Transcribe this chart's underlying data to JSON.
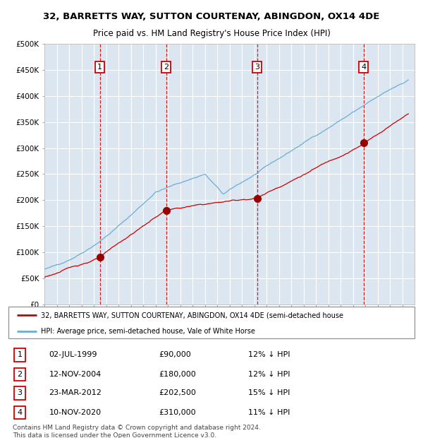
{
  "title": "32, BARRETTS WAY, SUTTON COURTENAY, ABINGDON, OX14 4DE",
  "subtitle": "Price paid vs. HM Land Registry's House Price Index (HPI)",
  "plot_bg_color": "#dce6f0",
  "hpi_color": "#6aaed6",
  "price_color": "#cc0000",
  "marker_color": "#990000",
  "vline_color": "#cc0000",
  "yticks": [
    0,
    50000,
    100000,
    150000,
    200000,
    250000,
    300000,
    350000,
    400000,
    450000,
    500000
  ],
  "ytick_labels": [
    "£0",
    "£50K",
    "£100K",
    "£150K",
    "£200K",
    "£250K",
    "£300K",
    "£350K",
    "£400K",
    "£450K",
    "£500K"
  ],
  "xmin": 1995.0,
  "xmax": 2025.0,
  "ymin": 0,
  "ymax": 500000,
  "sale_dates": [
    1999.5,
    2004.87,
    2012.23,
    2020.87
  ],
  "sale_prices": [
    90000,
    180000,
    202500,
    310000
  ],
  "sale_labels": [
    "1",
    "2",
    "3",
    "4"
  ],
  "legend_price_label": "32, BARRETTS WAY, SUTTON COURTENAY, ABINGDON, OX14 4DE (semi-detached house",
  "legend_hpi_label": "HPI: Average price, semi-detached house, Vale of White Horse",
  "table_rows": [
    {
      "num": "1",
      "date": "02-JUL-1999",
      "price": "£90,000",
      "hpi": "12% ↓ HPI"
    },
    {
      "num": "2",
      "date": "12-NOV-2004",
      "price": "£180,000",
      "hpi": "12% ↓ HPI"
    },
    {
      "num": "3",
      "date": "23-MAR-2012",
      "price": "£202,500",
      "hpi": "15% ↓ HPI"
    },
    {
      "num": "4",
      "date": "10-NOV-2020",
      "price": "£310,000",
      "hpi": "11% ↓ HPI"
    }
  ],
  "footer": "Contains HM Land Registry data © Crown copyright and database right 2024.\nThis data is licensed under the Open Government Licence v3.0."
}
